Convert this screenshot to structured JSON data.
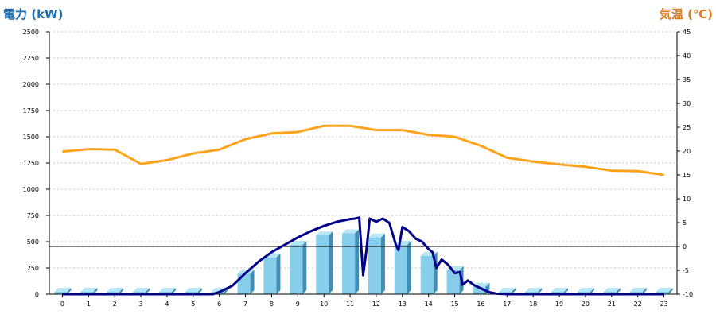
{
  "left_axis_title": "電力 (kW)",
  "right_axis_title": "気温 (℃)",
  "colors": {
    "left_title": "#1a6fb8",
    "right_title": "#e07a1f",
    "bar_front": "#87ceeb",
    "bar_side": "#3f8fb5",
    "bar_top": "#b9e6f7",
    "demand_line": "#00008b",
    "temp_line": "#ffa31a",
    "grid": "#c8c8c8",
    "zero_line": "#000000"
  },
  "chart_data": {
    "type": "bar",
    "categories": [
      "0",
      "1",
      "2",
      "3",
      "4",
      "5",
      "6",
      "7",
      "8",
      "9",
      "10",
      "11",
      "12",
      "13",
      "14",
      "15",
      "16",
      "17",
      "18",
      "19",
      "20",
      "21",
      "22",
      "23"
    ],
    "ylim_left": [
      0,
      2500
    ],
    "yticks_left": [
      0,
      250,
      500,
      750,
      1000,
      1250,
      1500,
      1750,
      2000,
      2250,
      2500
    ],
    "ylim_right": [
      -10,
      45
    ],
    "yticks_right": [
      -10,
      -5,
      0,
      5,
      10,
      15,
      20,
      25,
      30,
      35,
      40,
      45
    ],
    "grid": true,
    "series": [
      {
        "kind": "bar",
        "axis": "left",
        "values": [
          0,
          0,
          0,
          0,
          0,
          0,
          20,
          195,
          350,
          470,
          560,
          580,
          540,
          470,
          365,
          230,
          70,
          0,
          0,
          0,
          0,
          0,
          0,
          0
        ]
      },
      {
        "kind": "line",
        "axis": "right",
        "values": [
          19.9,
          20.4,
          20.3,
          17.3,
          18.1,
          19.5,
          20.3,
          22.5,
          23.7,
          24.0,
          25.3,
          25.3,
          24.4,
          24.4,
          23.4,
          23.0,
          21.1,
          18.6,
          17.8,
          17.2,
          16.7,
          15.9,
          15.8,
          15.0
        ]
      },
      {
        "kind": "line",
        "axis": "left",
        "x": [
          0,
          5.75,
          6,
          6.5,
          7,
          7.5,
          8,
          8.5,
          9,
          9.5,
          10,
          10.5,
          11,
          11.2,
          11.35,
          11.5,
          11.62,
          11.75,
          12,
          12.25,
          12.5,
          12.75,
          12.85,
          13,
          13.25,
          13.5,
          13.75,
          14,
          14.15,
          14.3,
          14.5,
          14.75,
          15,
          15.2,
          15.3,
          15.5,
          15.75,
          16,
          16.3,
          16.6,
          17,
          23
        ],
        "y": [
          0,
          0,
          20,
          80,
          200,
          310,
          400,
          470,
          540,
          600,
          650,
          690,
          715,
          720,
          730,
          180,
          410,
          720,
          690,
          720,
          680,
          470,
          420,
          640,
          600,
          530,
          500,
          430,
          400,
          250,
          330,
          280,
          200,
          210,
          90,
          130,
          85,
          55,
          20,
          5,
          0,
          0
        ]
      }
    ]
  }
}
